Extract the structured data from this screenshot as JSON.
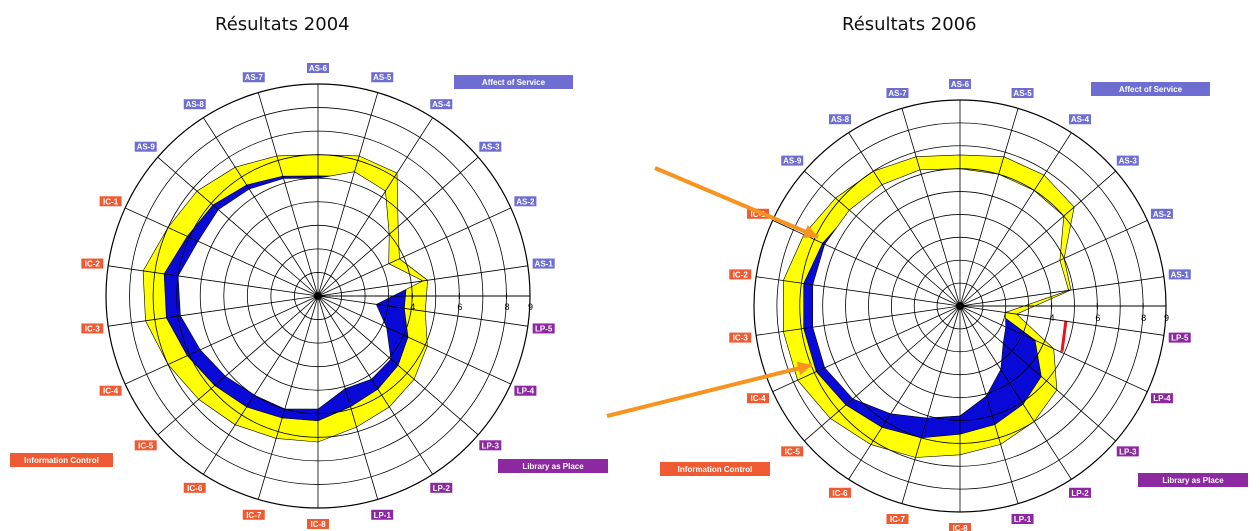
{
  "chart_data": [
    {
      "type": "radar",
      "title": "Résultats 2004",
      "axes": [
        "AS-6",
        "AS-5",
        "AS-4",
        "AS-3",
        "AS-2",
        "AS-1",
        "LP-5",
        "LP-4",
        "LP-3",
        "LP-2",
        "LP-1",
        "IC-8",
        "IC-7",
        "IC-6",
        "IC-5",
        "IC-4",
        "IC-3",
        "IC-2",
        "IC-1",
        "AS-9",
        "AS-8",
        "AS-7"
      ],
      "rlim": [
        0,
        9
      ],
      "tick_labels": [
        "4",
        "6",
        "8",
        "9"
      ],
      "group_labels": [
        "Affect of Service",
        "Library as Place",
        "Information Control"
      ],
      "series": [
        {
          "values": [
            5.0,
            5.5,
            5.3,
            4.0,
            3.3,
            4.5,
            2.5,
            3.2,
            4.1,
            4.2,
            4.1,
            4.8,
            5.0,
            5.0,
            5.2,
            5.5,
            5.9,
            6.0,
            5.6,
            5.6,
            5.4,
            5.2
          ]
        },
        {
          "values": [
            6.0,
            6.2,
            6.2,
            4.5,
            3.8,
            4.7,
            4.6,
            5.1,
            5.4,
            5.6,
            5.8,
            6.2,
            6.3,
            6.5,
            6.7,
            7.0,
            7.4,
            7.5,
            7.0,
            6.8,
            6.5,
            6.2
          ]
        }
      ]
    },
    {
      "type": "radar",
      "title": "Résultats 2006",
      "axes": [
        "AS-6",
        "AS-5",
        "AS-4",
        "AS-3",
        "AS-2",
        "AS-1",
        "LP-5",
        "LP-4",
        "LP-3",
        "LP-2",
        "LP-1",
        "IC-8",
        "IC-7",
        "IC-6",
        "IC-5",
        "IC-4",
        "IC-3",
        "IC-2",
        "IC-1",
        "AS-9",
        "AS-8",
        "AS-7"
      ],
      "rlim": [
        0,
        9
      ],
      "tick_labels": [
        "4",
        "6",
        "8",
        "9"
      ],
      "group_labels": [
        "Affect of Service",
        "Library as Place",
        "Information Control"
      ],
      "series": [
        {
          "values": [
            6.0,
            6.0,
            6.0,
            6.0,
            4.8,
            4.8,
            2.0,
            2.2,
            2.5,
            3.3,
            4.1,
            4.8,
            5.1,
            5.6,
            6.2,
            6.5,
            6.5,
            6.5,
            6.5,
            6.4,
            6.3,
            6.2
          ]
        },
        {
          "values": [
            6.6,
            6.8,
            6.8,
            6.6,
            5.0,
            4.9,
            2.5,
            4.5,
            5.6,
            6.0,
            6.3,
            6.5,
            6.9,
            7.2,
            7.5,
            7.8,
            7.8,
            7.8,
            7.5,
            7.2,
            7.0,
            6.8
          ]
        },
        {
          "values": [
            2.0,
            2.0,
            2.0,
            2.0,
            2.0,
            2.0,
            4.5,
            4.8,
            2.0,
            2.0,
            2.0,
            2.0,
            2.0,
            2.0,
            2.0,
            2.0,
            2.0,
            2.0,
            2.0,
            2.0,
            2.0,
            2.0
          ]
        }
      ]
    }
  ],
  "colors": {
    "yellow": "#ffff00",
    "blue": "#0a0ad8",
    "red": "#e8141e",
    "as_label": "#6e6ed2",
    "lp_label": "#8c28a0",
    "ic_label": "#f05a32",
    "arrow": "#f7931e"
  }
}
